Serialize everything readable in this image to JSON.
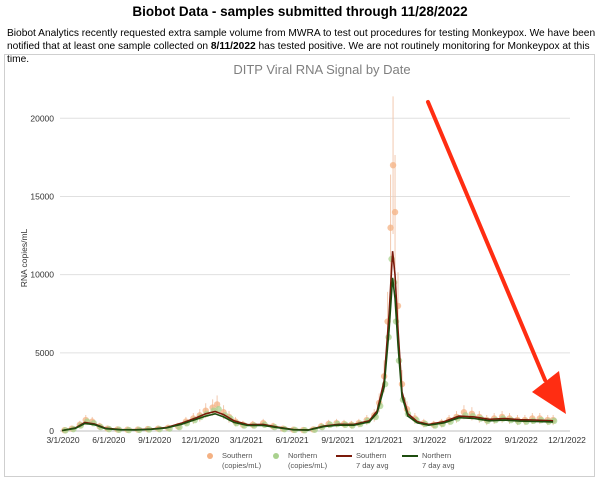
{
  "page": {
    "title": "Biobot Data - samples submitted through 11/28/2022",
    "intro_1": "Biobot Analytics recently requested extra sample volume from MWRA to test out procedures for testing Monkeypox. We have been notified that at least one sample collected on ",
    "intro_date": "8/11/2022",
    "intro_2": " has tested positive. We are not routinely monitoring for Monkeypox at this time."
  },
  "colors": {
    "southern_points": "#f4b183",
    "northern_points": "#a9d18e",
    "southern_avg": "#7b1a0a",
    "northern_avg": "#1e4d0f",
    "gridline": "#e0e0e0",
    "arrow": "#ff2d12",
    "error_bar": "#f2c9b0"
  },
  "chart_data": {
    "type": "scatter",
    "title": "DITP Viral RNA Signal by Date",
    "xlabel": "",
    "ylabel": "RNA copies/mL",
    "ylim": [
      0,
      22000
    ],
    "xlim": [
      "2020-03-01",
      "2022-12-25"
    ],
    "y_ticks": [
      0,
      5000,
      10000,
      15000,
      20000
    ],
    "x_ticks": [
      "3/1/2020",
      "6/1/2020",
      "9/1/2020",
      "12/1/2020",
      "3/1/2021",
      "6/1/2021",
      "9/1/2021",
      "12/1/2021",
      "3/1/2022",
      "6/1/2022",
      "9/1/2022",
      "12/1/2022"
    ],
    "grid": "horizontal",
    "legend_position": "bottom",
    "legend": [
      {
        "label": "Southern (copies/mL)",
        "kind": "points",
        "color": "#f4b183"
      },
      {
        "label": "Northern (copies/mL)",
        "kind": "points",
        "color": "#a9d18e"
      },
      {
        "label": "Southern 7 day avg",
        "kind": "line",
        "color": "#7b1a0a"
      },
      {
        "label": "Northern 7 day avg",
        "kind": "line",
        "color": "#1e4d0f"
      }
    ],
    "series": [
      {
        "name": "Southern (copies/mL)",
        "x": [
          "2020-03-10",
          "2020-03-25",
          "2020-04-10",
          "2020-04-22",
          "2020-05-05",
          "2020-05-20",
          "2020-06-05",
          "2020-06-25",
          "2020-07-15",
          "2020-08-05",
          "2020-08-25",
          "2020-09-15",
          "2020-10-05",
          "2020-10-25",
          "2020-11-10",
          "2020-11-25",
          "2020-12-08",
          "2020-12-20",
          "2021-01-03",
          "2021-01-12",
          "2021-01-25",
          "2021-02-05",
          "2021-02-18",
          "2021-03-05",
          "2021-03-25",
          "2021-04-15",
          "2021-05-05",
          "2021-05-25",
          "2021-06-15",
          "2021-07-05",
          "2021-07-25",
          "2021-08-10",
          "2021-08-25",
          "2021-09-10",
          "2021-09-25",
          "2021-10-10",
          "2021-10-25",
          "2021-11-10",
          "2021-11-25",
          "2021-12-05",
          "2021-12-15",
          "2021-12-22",
          "2021-12-28",
          "2022-01-02",
          "2022-01-06",
          "2022-01-12",
          "2022-01-20",
          "2022-01-30",
          "2022-02-15",
          "2022-03-05",
          "2022-03-25",
          "2022-04-10",
          "2022-04-25",
          "2022-05-10",
          "2022-05-25",
          "2022-06-10",
          "2022-06-25",
          "2022-07-10",
          "2022-07-25",
          "2022-08-10",
          "2022-08-25",
          "2022-09-10",
          "2022-09-25",
          "2022-10-10",
          "2022-10-25",
          "2022-11-10",
          "2022-11-21"
        ],
        "values": [
          50,
          150,
          400,
          700,
          600,
          300,
          150,
          100,
          80,
          90,
          120,
          150,
          200,
          300,
          600,
          800,
          1000,
          1300,
          1500,
          1700,
          1200,
          900,
          600,
          400,
          400,
          500,
          300,
          150,
          80,
          60,
          100,
          300,
          450,
          500,
          450,
          400,
          500,
          700,
          1000,
          1800,
          3500,
          7000,
          13000,
          17000,
          14000,
          8000,
          3000,
          1400,
          800,
          500,
          400,
          500,
          700,
          900,
          1200,
          1100,
          900,
          700,
          800,
          900,
          800,
          700,
          700,
          800,
          800,
          700,
          700
        ]
      },
      {
        "name": "Northern (copies/mL)",
        "x": [
          "2020-03-12",
          "2020-03-28",
          "2020-04-12",
          "2020-04-25",
          "2020-05-08",
          "2020-05-22",
          "2020-06-08",
          "2020-06-28",
          "2020-07-18",
          "2020-08-08",
          "2020-08-28",
          "2020-09-18",
          "2020-10-08",
          "2020-10-28",
          "2020-11-12",
          "2020-11-28",
          "2020-12-10",
          "2020-12-22",
          "2021-01-05",
          "2021-01-15",
          "2021-01-28",
          "2021-02-08",
          "2021-02-20",
          "2021-03-08",
          "2021-03-28",
          "2021-04-18",
          "2021-05-08",
          "2021-05-28",
          "2021-06-18",
          "2021-07-08",
          "2021-07-28",
          "2021-08-12",
          "2021-08-28",
          "2021-09-12",
          "2021-09-28",
          "2021-10-12",
          "2021-10-28",
          "2021-11-12",
          "2021-11-28",
          "2021-12-07",
          "2021-12-17",
          "2021-12-24",
          "2021-12-30",
          "2022-01-04",
          "2022-01-08",
          "2022-01-14",
          "2022-01-22",
          "2022-02-01",
          "2022-02-18",
          "2022-03-08",
          "2022-03-28",
          "2022-04-12",
          "2022-04-28",
          "2022-05-12",
          "2022-05-28",
          "2022-06-12",
          "2022-06-28",
          "2022-07-12",
          "2022-07-28",
          "2022-08-12",
          "2022-08-28",
          "2022-09-12",
          "2022-09-28",
          "2022-10-12",
          "2022-10-28",
          "2022-11-12",
          "2022-11-23"
        ],
        "values": [
          40,
          120,
          350,
          600,
          500,
          250,
          120,
          80,
          60,
          70,
          100,
          120,
          150,
          250,
          500,
          700,
          900,
          1100,
          1300,
          1400,
          1000,
          800,
          500,
          350,
          350,
          400,
          250,
          120,
          70,
          50,
          80,
          250,
          400,
          450,
          400,
          350,
          450,
          650,
          900,
          1600,
          3000,
          6000,
          11000,
          9500,
          7000,
          4500,
          2000,
          1100,
          700,
          450,
          350,
          450,
          600,
          800,
          1000,
          950,
          800,
          650,
          700,
          800,
          700,
          600,
          600,
          650,
          700,
          600,
          650
        ]
      },
      {
        "name": "Southern 7 day avg",
        "x": [
          "2020-03-05",
          "2020-04-01",
          "2020-04-20",
          "2020-05-10",
          "2020-06-01",
          "2020-07-01",
          "2020-08-01",
          "2020-09-01",
          "2020-10-01",
          "2020-11-01",
          "2020-12-01",
          "2020-12-20",
          "2021-01-08",
          "2021-01-25",
          "2021-02-15",
          "2021-03-15",
          "2021-04-15",
          "2021-05-15",
          "2021-06-15",
          "2021-07-15",
          "2021-08-15",
          "2021-09-15",
          "2021-10-15",
          "2021-11-15",
          "2021-12-01",
          "2021-12-15",
          "2021-12-25",
          "2022-01-01",
          "2022-01-06",
          "2022-01-12",
          "2022-01-20",
          "2022-02-01",
          "2022-02-20",
          "2022-03-15",
          "2022-04-15",
          "2022-05-15",
          "2022-06-15",
          "2022-07-15",
          "2022-08-15",
          "2022-09-15",
          "2022-10-15",
          "2022-11-21"
        ],
        "values": [
          30,
          200,
          550,
          450,
          180,
          90,
          80,
          130,
          220,
          500,
          850,
          1100,
          1250,
          1050,
          650,
          400,
          420,
          250,
          90,
          70,
          320,
          430,
          420,
          650,
          1300,
          3200,
          7500,
          11500,
          10000,
          6500,
          2500,
          1100,
          600,
          420,
          600,
          950,
          900,
          750,
          800,
          720,
          700,
          650
        ]
      },
      {
        "name": "Northern 7 day avg",
        "x": [
          "2020-03-05",
          "2020-04-01",
          "2020-04-20",
          "2020-05-10",
          "2020-06-01",
          "2020-07-01",
          "2020-08-01",
          "2020-09-01",
          "2020-10-01",
          "2020-11-01",
          "2020-12-01",
          "2020-12-20",
          "2021-01-08",
          "2021-01-25",
          "2021-02-15",
          "2021-03-15",
          "2021-04-15",
          "2021-05-15",
          "2021-06-15",
          "2021-07-15",
          "2021-08-15",
          "2021-09-15",
          "2021-10-15",
          "2021-11-15",
          "2021-12-01",
          "2021-12-15",
          "2021-12-25",
          "2022-01-01",
          "2022-01-06",
          "2022-01-12",
          "2022-01-20",
          "2022-02-01",
          "2022-02-20",
          "2022-03-15",
          "2022-04-15",
          "2022-05-15",
          "2022-06-15",
          "2022-07-15",
          "2022-08-15",
          "2022-09-15",
          "2022-10-15",
          "2022-11-21"
        ],
        "values": [
          25,
          170,
          480,
          400,
          150,
          75,
          70,
          110,
          190,
          430,
          750,
          950,
          1100,
          900,
          550,
          350,
          360,
          210,
          75,
          60,
          280,
          380,
          370,
          580,
          1150,
          2800,
          6500,
          9800,
          8500,
          5500,
          2200,
          950,
          520,
          370,
          520,
          850,
          800,
          650,
          700,
          630,
          610,
          580
        ]
      }
    ]
  }
}
